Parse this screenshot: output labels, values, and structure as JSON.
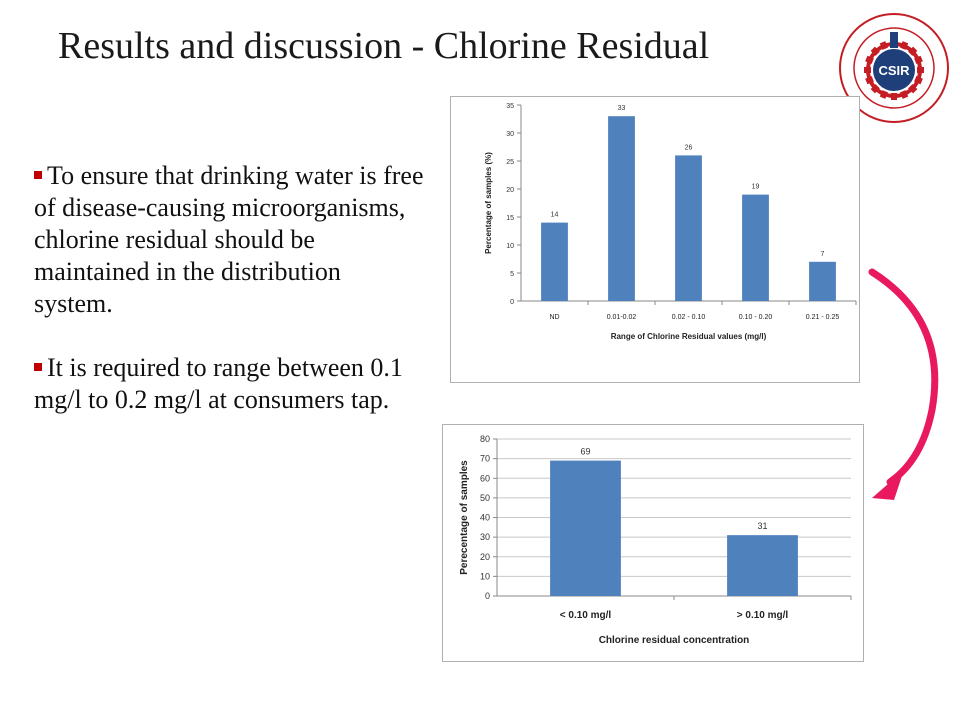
{
  "title": "Results and discussion - Chlorine Residual",
  "logo": {
    "center_text": "CSIR",
    "ring_text": "COUNCIL FOR SCIENTIFIC AND INDUSTRIAL RESEARCH",
    "country": "GHANA"
  },
  "bullets": [
    "To ensure that drinking water is free of disease-causing microorganisms, chlorine residual should be maintained in the distribution system.",
    "It is required to range between 0.1 mg/l to 0.2 mg/l at consumers tap."
  ],
  "colors": {
    "bar": "#4f81bd",
    "arrow": "#e8195e",
    "bullet_marker": "#c00000"
  },
  "chart_data": [
    {
      "type": "bar",
      "categories": [
        "ND",
        "0.01-0.02",
        "0.02 - 0.10",
        "0.10 - 0.20",
        "0.21 - 0.25"
      ],
      "values": [
        14,
        33,
        26,
        19,
        7
      ],
      "ylim": [
        0,
        35
      ],
      "yticks": [
        0,
        5,
        10,
        15,
        20,
        25,
        30,
        35
      ],
      "xlabel": "Range of Chlorine Residual values (mg/l)",
      "ylabel": "Percentage of samples (%)",
      "grid": false,
      "legend": "none"
    },
    {
      "type": "bar",
      "categories": [
        "< 0.10 mg/l",
        "> 0.10 mg/l"
      ],
      "values": [
        69,
        31
      ],
      "ylim": [
        0,
        80
      ],
      "yticks": [
        0,
        10,
        20,
        30,
        40,
        50,
        60,
        70,
        80
      ],
      "xlabel": "Chlorine residual concentration",
      "ylabel": "Perecentage of samples",
      "grid": true,
      "legend": "none"
    }
  ]
}
